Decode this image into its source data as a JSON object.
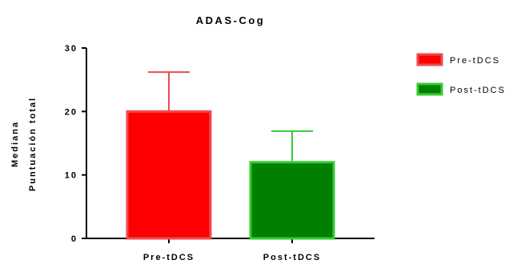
{
  "chart_data": {
    "type": "bar",
    "title": "ADAS-Cog",
    "ylabel_lines": [
      "Mediana",
      "Puntuación total"
    ],
    "xlabel": "",
    "categories": [
      "Pre-tDCS",
      "Post-tDCS"
    ],
    "values": [
      20,
      12
    ],
    "error_upper": [
      26.2,
      16.9
    ],
    "ylim": [
      0,
      30
    ],
    "yticks": [
      0,
      10,
      20,
      30
    ],
    "grid": false,
    "legend_position": "top-right",
    "series": [
      {
        "name": "Pre-tDCS",
        "fill": "#ff0000",
        "stroke": "#ee4b50"
      },
      {
        "name": "Post-tDCS",
        "fill": "#008000",
        "stroke": "#33cc33"
      }
    ]
  }
}
